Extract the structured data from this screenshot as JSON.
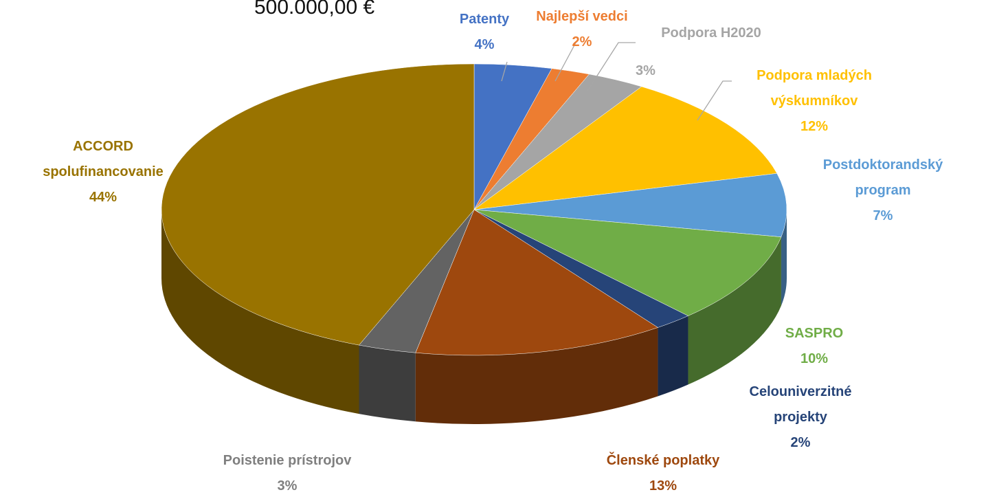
{
  "chart_data": {
    "type": "pie",
    "title": "500.000,00 €",
    "categories": [
      "Patenty",
      "Najlepší vedci",
      "Podpora H2020",
      "Podpora mladých výskumníkov",
      "Postdoktorandský program",
      "SASPRO",
      "Celouniverzitné projekty",
      "Členské poplatky",
      "Poistenie prístrojov",
      "ACCORD spolufinancovanie"
    ],
    "values": [
      4,
      2,
      3,
      12,
      7,
      10,
      2,
      13,
      3,
      44
    ],
    "value_labels": [
      "4%",
      "2%",
      "3%",
      "12%",
      "7%",
      "10%",
      "2%",
      "13%",
      "3%",
      "44%"
    ],
    "colors": [
      "#4472c4",
      "#ed7d31",
      "#a5a5a5",
      "#ffc000",
      "#5b9bd5",
      "#70ad47",
      "#264478",
      "#9e480e",
      "#636363",
      "#997300"
    ]
  }
}
